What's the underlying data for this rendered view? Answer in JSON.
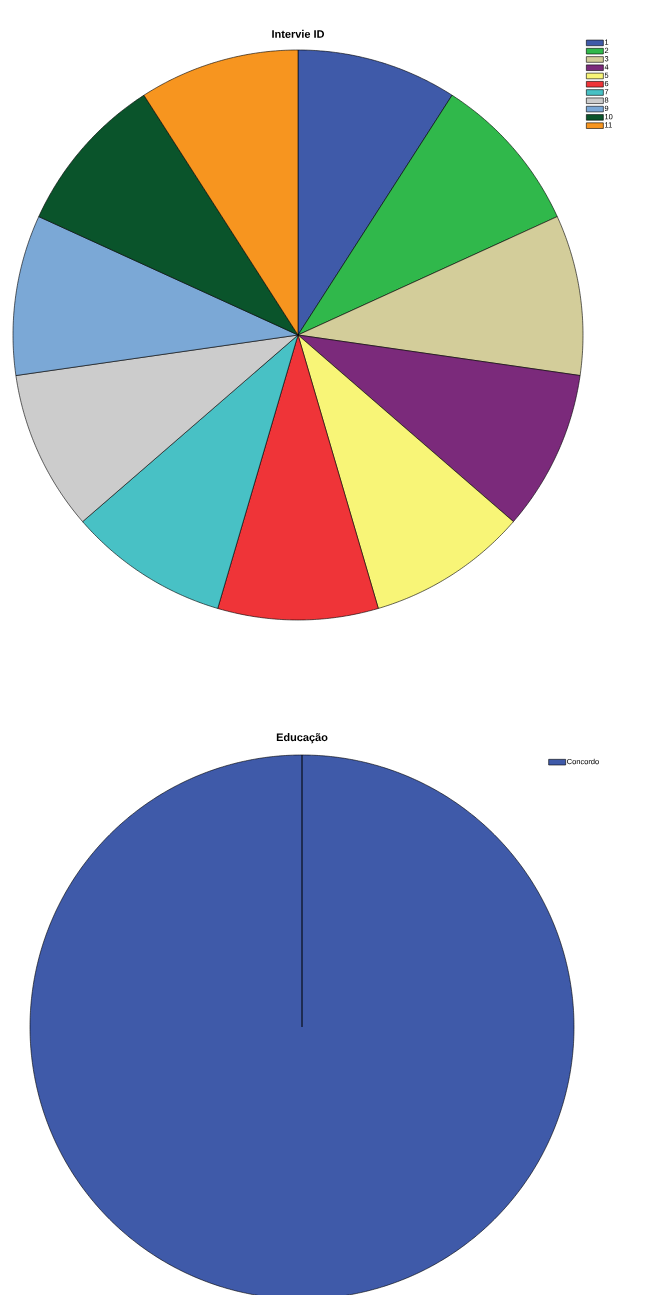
{
  "chart_data": [
    {
      "type": "pie",
      "title": "Intervie ID",
      "categories": [
        "1",
        "2",
        "3",
        "4",
        "5",
        "6",
        "7",
        "8",
        "9",
        "10",
        "11"
      ],
      "values": [
        9.09,
        9.09,
        9.09,
        9.09,
        9.09,
        9.09,
        9.09,
        9.09,
        9.09,
        9.09,
        9.09
      ],
      "colors": [
        "#3f5aa9",
        "#30b84b",
        "#d3cd9a",
        "#7b2a7b",
        "#f8f577",
        "#ef3438",
        "#48c1c5",
        "#cccccc",
        "#7ba8d6",
        "#0a542b",
        "#f7951f"
      ],
      "legend": "top right"
    },
    {
      "type": "pie",
      "title": "Educação",
      "categories": [
        "Concordo"
      ],
      "values": [
        100
      ],
      "colors": [
        "#3f5aa9"
      ],
      "legend": "top right"
    }
  ]
}
